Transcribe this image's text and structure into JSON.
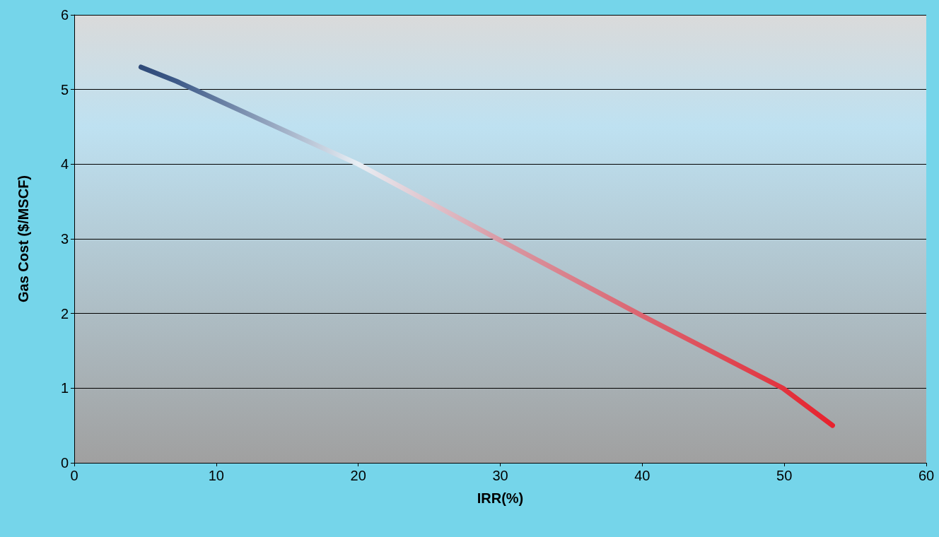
{
  "chart_data": {
    "type": "line",
    "xlabel": "IRR(%)",
    "ylabel": "Gas Cost ($/MSCF)",
    "x": [
      4.7,
      7.2,
      20,
      30,
      40,
      49.9,
      53.4
    ],
    "series": [
      {
        "values": [
          5.3,
          5.11,
          4.0,
          2.98,
          1.97,
          1.0,
          0.5
        ],
        "colors": [
          "#2f4a78",
          "#3d5a88",
          "#e8eef4",
          "#d89aa5",
          "#dc6470",
          "#e2343f",
          "#e8222e"
        ]
      }
    ],
    "xlim": [
      0,
      60
    ],
    "xticks": [
      0,
      10,
      20,
      30,
      40,
      50,
      60
    ],
    "ylim": [
      0,
      6
    ],
    "yticks": [
      0,
      1,
      2,
      3,
      4,
      5,
      6
    ],
    "grid": "y",
    "marker": "none",
    "line_style": "solid"
  }
}
